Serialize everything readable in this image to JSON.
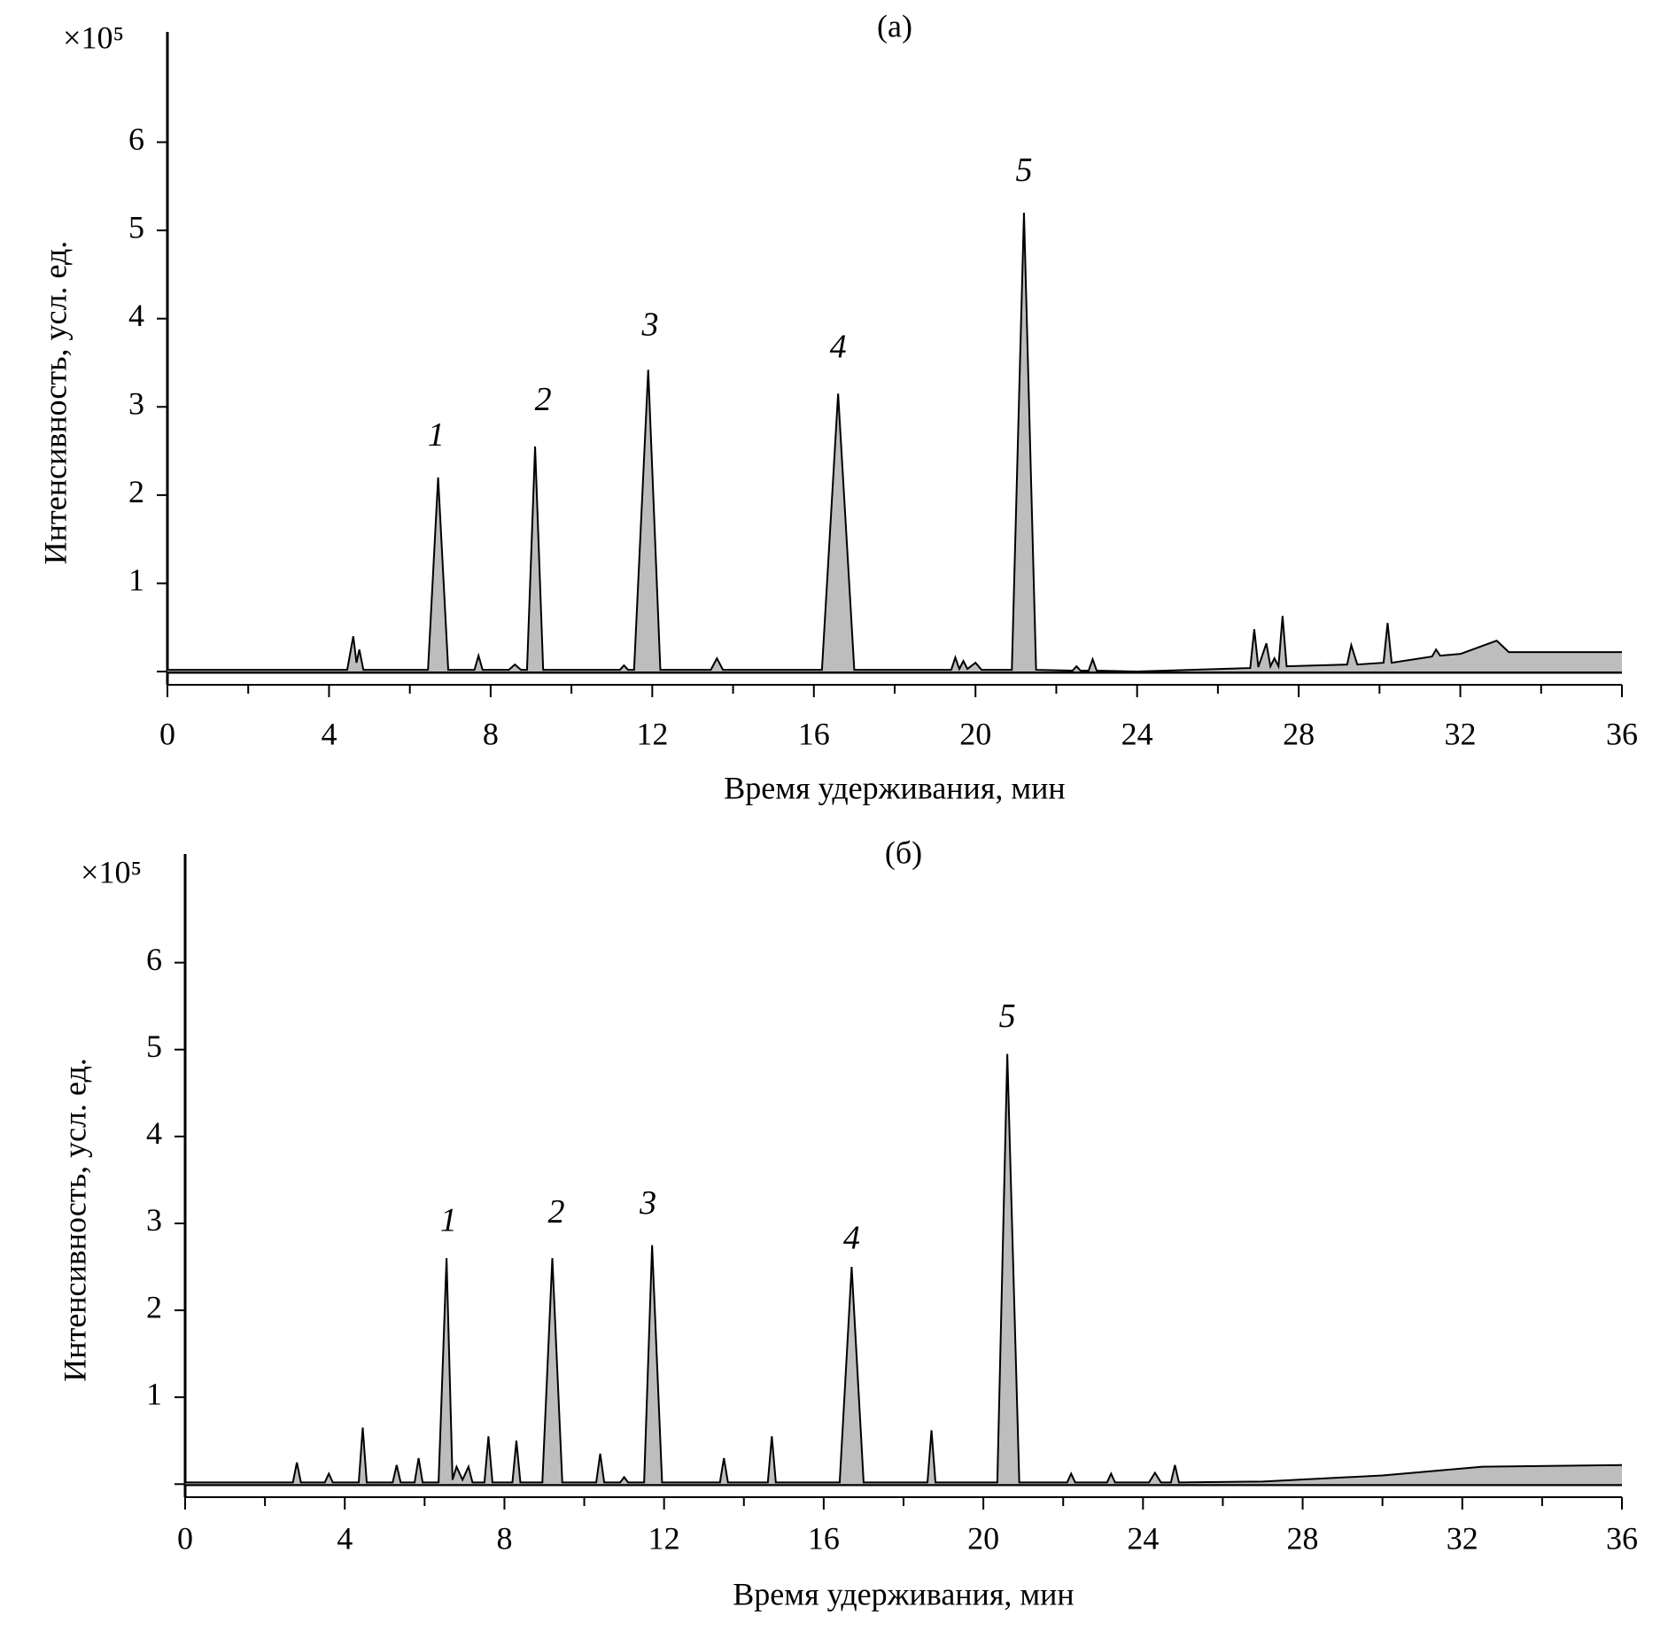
{
  "chart_data": [
    {
      "type": "line",
      "title": "(а)",
      "xlabel": "Время удерживания, мин",
      "ylabel": "Интенсивность, усл. ед.",
      "scale_label": "×10⁵",
      "xlim": [
        0,
        36
      ],
      "ylim": [
        -0.15,
        7.25
      ],
      "xticks": [
        0,
        4,
        8,
        12,
        16,
        20,
        24,
        28,
        32,
        36
      ],
      "xminorticks": [
        2,
        6,
        10,
        14,
        18,
        22,
        26,
        30,
        34
      ],
      "yticks": [
        {
          "value": 0,
          "label": null
        },
        1,
        2,
        3,
        4,
        5,
        6
      ],
      "x": [
        0,
        4.45,
        4.6,
        4.68,
        4.75,
        4.85,
        6.45,
        6.7,
        6.95,
        7.6,
        7.7,
        7.8,
        8.45,
        8.6,
        8.75,
        8.9,
        9.1,
        9.3,
        11.2,
        11.3,
        11.4,
        11.55,
        11.9,
        12.2,
        13.45,
        13.6,
        13.75,
        16.2,
        16.6,
        17.0,
        19.4,
        19.5,
        19.6,
        19.7,
        19.8,
        20.0,
        20.15,
        20.9,
        21.2,
        21.5,
        22.4,
        22.5,
        22.6,
        22.8,
        22.9,
        23.0,
        24,
        26.8,
        26.9,
        27.0,
        27.2,
        27.3,
        27.4,
        27.5,
        27.6,
        27.7,
        29.2,
        29.3,
        29.45,
        30.1,
        30.2,
        30.3,
        31.3,
        31.4,
        31.5,
        32,
        32.9,
        33.2,
        36
      ],
      "series": [
        {
          "color": "#000000",
          "fill": "#bdbdbd",
          "values": [
            0.02,
            0.02,
            0.4,
            0.1,
            0.25,
            0.02,
            0.02,
            2.2,
            0.02,
            0.02,
            0.18,
            0.02,
            0.02,
            0.08,
            0.02,
            0.02,
            2.55,
            0.02,
            0.02,
            0.07,
            0.02,
            0.02,
            3.42,
            0.02,
            0.02,
            0.15,
            0.02,
            0.02,
            3.15,
            0.02,
            0.02,
            0.16,
            0.03,
            0.12,
            0.03,
            0.1,
            0.02,
            0.02,
            5.2,
            0.02,
            0.01,
            0.06,
            0.01,
            0.01,
            0.14,
            0.01,
            0.0,
            0.04,
            0.48,
            0.05,
            0.32,
            0.06,
            0.15,
            0.06,
            0.63,
            0.06,
            0.08,
            0.3,
            0.08,
            0.1,
            0.55,
            0.1,
            0.17,
            0.25,
            0.18,
            0.2,
            0.35,
            0.22,
            0.22
          ]
        }
      ],
      "annotations": [
        {
          "text": "1",
          "x": 6.65,
          "y": 2.65
        },
        {
          "text": "2",
          "x": 9.3,
          "y": 3.05
        },
        {
          "text": "3",
          "x": 11.95,
          "y": 3.9
        },
        {
          "text": "4",
          "x": 16.6,
          "y": 3.65
        },
        {
          "text": "5",
          "x": 21.2,
          "y": 5.65
        }
      ]
    },
    {
      "type": "line",
      "title": "(б)",
      "xlabel": "Время удерживания, мин",
      "ylabel": "Интенсивность, усл. ед.",
      "scale_label": "×10⁵",
      "xlim": [
        0,
        36
      ],
      "ylim": [
        -0.15,
        7.25
      ],
      "xticks": [
        0,
        4,
        8,
        12,
        16,
        20,
        24,
        28,
        32,
        36
      ],
      "xminorticks": [
        2,
        6,
        10,
        14,
        18,
        22,
        26,
        30,
        34
      ],
      "yticks": [
        {
          "value": 0,
          "label": null
        },
        1,
        2,
        3,
        4,
        5,
        6
      ],
      "x": [
        0,
        2.7,
        2.8,
        2.9,
        3.5,
        3.6,
        3.7,
        4.35,
        4.45,
        4.55,
        5.2,
        5.3,
        5.4,
        5.75,
        5.85,
        5.95,
        6.35,
        6.55,
        6.7,
        6.8,
        6.95,
        7.1,
        7.2,
        7.5,
        7.6,
        7.7,
        8.2,
        8.3,
        8.4,
        8.95,
        9.2,
        9.45,
        10.3,
        10.4,
        10.5,
        10.9,
        11.0,
        11.1,
        11.5,
        11.7,
        11.95,
        13.4,
        13.5,
        13.6,
        14.6,
        14.7,
        14.8,
        16.4,
        16.7,
        17.0,
        18.6,
        18.7,
        18.8,
        20.35,
        20.6,
        20.9,
        22.1,
        22.2,
        22.3,
        23.1,
        23.2,
        23.3,
        24.15,
        24.3,
        24.45,
        24.7,
        24.8,
        24.9,
        27,
        30,
        32.5,
        36
      ],
      "series": [
        {
          "color": "#000000",
          "fill": "#bdbdbd",
          "values": [
            0.02,
            0.02,
            0.25,
            0.02,
            0.02,
            0.12,
            0.02,
            0.02,
            0.65,
            0.02,
            0.02,
            0.22,
            0.02,
            0.02,
            0.3,
            0.02,
            0.02,
            2.6,
            0.05,
            0.2,
            0.05,
            0.2,
            0.02,
            0.02,
            0.55,
            0.02,
            0.02,
            0.5,
            0.02,
            0.02,
            2.6,
            0.02,
            0.02,
            0.35,
            0.02,
            0.02,
            0.08,
            0.02,
            0.02,
            2.75,
            0.02,
            0.02,
            0.3,
            0.02,
            0.02,
            0.55,
            0.02,
            0.02,
            2.5,
            0.02,
            0.02,
            0.62,
            0.02,
            0.02,
            4.95,
            0.02,
            0.02,
            0.12,
            0.02,
            0.02,
            0.12,
            0.02,
            0.02,
            0.13,
            0.02,
            0.02,
            0.22,
            0.02,
            0.03,
            0.1,
            0.2,
            0.22
          ]
        }
      ],
      "annotations": [
        {
          "text": "1",
          "x": 6.6,
          "y": 3.0
        },
        {
          "text": "2",
          "x": 9.3,
          "y": 3.1
        },
        {
          "text": "3",
          "x": 11.6,
          "y": 3.2
        },
        {
          "text": "4",
          "x": 16.7,
          "y": 2.8
        },
        {
          "text": "5",
          "x": 20.6,
          "y": 5.35
        }
      ]
    }
  ]
}
